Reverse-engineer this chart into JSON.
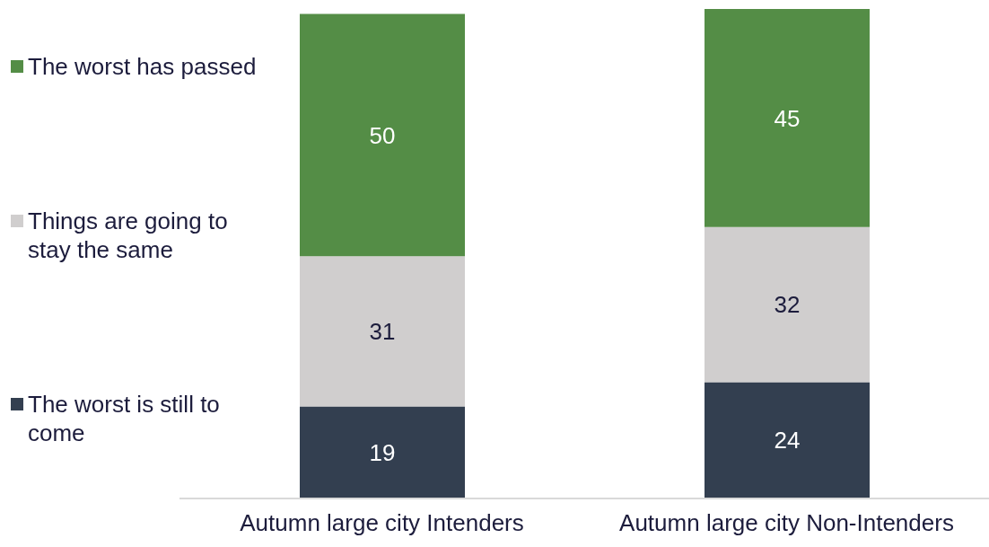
{
  "chart_data": {
    "type": "bar",
    "stacked": true,
    "data_labels": true,
    "legend": "left",
    "grid": false,
    "categories": [
      "Autumn large city Intenders",
      "Autumn large city Non-Intenders"
    ],
    "series": [
      {
        "name": "The worst is still to come",
        "color": "#333f50",
        "values": [
          19,
          24
        ]
      },
      {
        "name": "Things are going to stay the same",
        "color": "#d0cece",
        "values": [
          31,
          32
        ]
      },
      {
        "name": "The worst has passed",
        "color": "#548d46",
        "values": [
          50,
          45
        ]
      }
    ]
  }
}
